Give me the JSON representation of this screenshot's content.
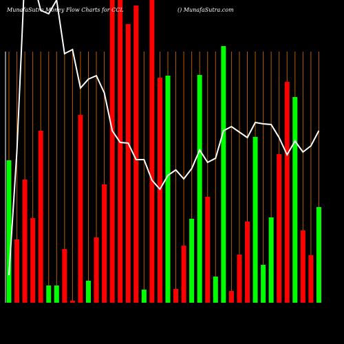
{
  "chart_data": {
    "type": "bar-line",
    "title": "MunafaSutra  Money Flow  Charts for CCL",
    "site": "() MunafaSutra.com",
    "ylim": [
      0,
      440
    ],
    "values": [
      207,
      92,
      179,
      123,
      250,
      25,
      25,
      78,
      3,
      273,
      32,
      95,
      172,
      440,
      440,
      405,
      432,
      19,
      440,
      327,
      330,
      20,
      83,
      122,
      331,
      154,
      38,
      373,
      17,
      70,
      118,
      241,
      55,
      124,
      216,
      321,
      299,
      105,
      69,
      139
    ],
    "bar_colors": [
      "#00ff00",
      "#ff0000",
      "#ff0000",
      "#ff0000",
      "#ff0000",
      "#00ff00",
      "#00ff00",
      "#ff0000",
      "#ff0000",
      "#ff0000",
      "#00ff00",
      "#ff0000",
      "#ff0000",
      "#ff0000",
      "#ff0000",
      "#ff0000",
      "#ff0000",
      "#00ff00",
      "#ff0000",
      "#ff0000",
      "#00ff00",
      "#ff0000",
      "#ff0000",
      "#00ff00",
      "#00ff00",
      "#ff0000",
      "#00ff00",
      "#00ff00",
      "#ff0000",
      "#ff0000",
      "#ff0000",
      "#00ff00",
      "#00ff00",
      "#00ff00",
      "#ff0000",
      "#ff0000",
      "#00ff00",
      "#ff0000",
      "#ff0000",
      "#00ff00"
    ],
    "line_values": [
      40,
      220,
      480,
      470,
      425,
      420,
      440,
      362,
      368,
      312,
      325,
      330,
      305,
      250,
      233,
      232,
      208,
      208,
      178,
      165,
      185,
      193,
      180,
      195,
      222,
      204,
      210,
      250,
      256,
      248,
      240,
      262,
      260,
      259,
      240,
      215,
      235,
      219,
      228,
      250
    ],
    "line_color": "#ffffff",
    "grid_color": "#b85c00"
  }
}
